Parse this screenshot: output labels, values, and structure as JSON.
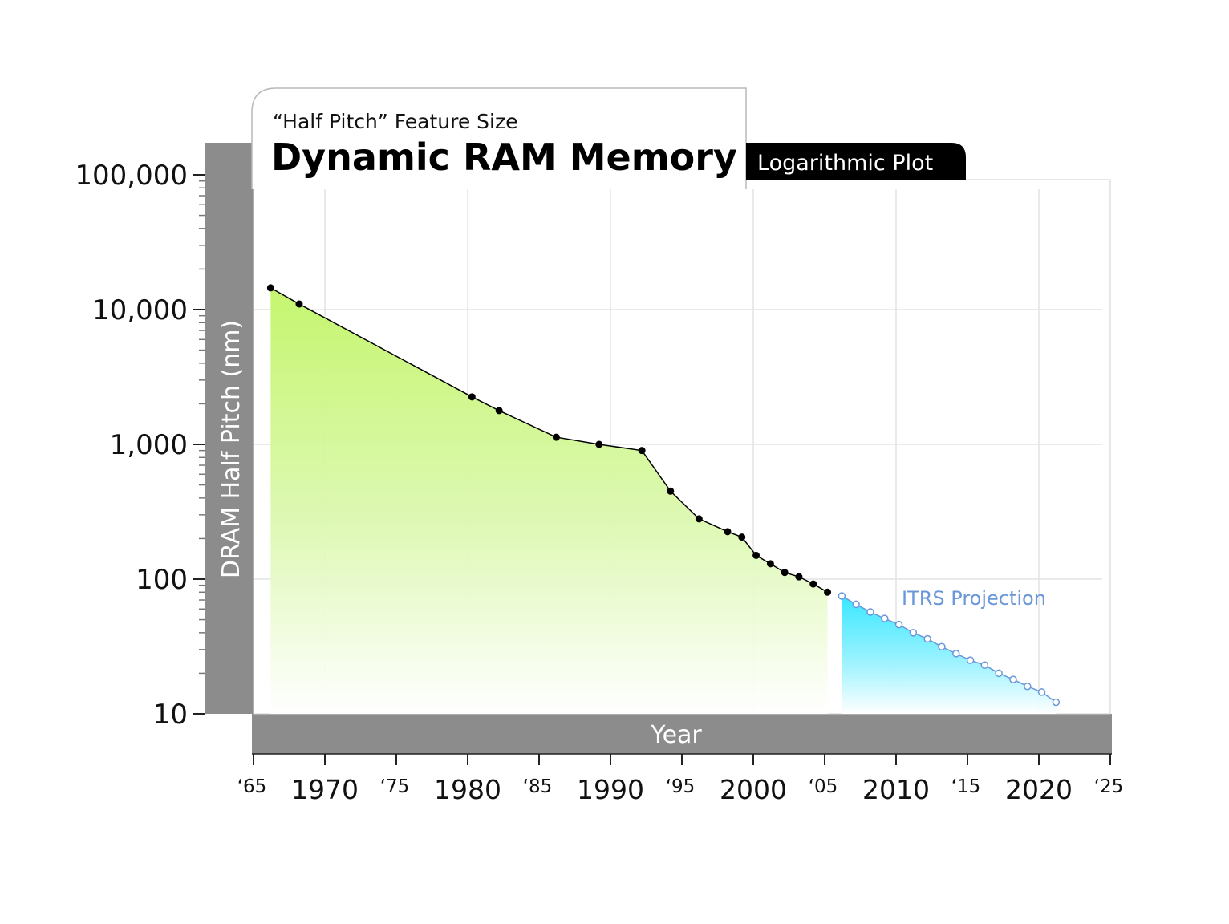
{
  "chart_data": {
    "type": "area",
    "subtitle": "“Half Pitch” Feature Size",
    "title": "Dynamic RAM Memory",
    "badge": "Logarithmic Plot",
    "xlabel": "Year",
    "ylabel": "DRAM Half Pitch (nm)",
    "y_scale": "log",
    "ylim": [
      10,
      100000
    ],
    "xlim": [
      1965,
      2025
    ],
    "grid": true,
    "y_ticks": [
      {
        "value": 100000,
        "label": "100,000"
      },
      {
        "value": 10000,
        "label": "10,000"
      },
      {
        "value": 1000,
        "label": "1,000"
      },
      {
        "value": 100,
        "label": "100"
      },
      {
        "value": 10,
        "label": "10"
      }
    ],
    "x_ticks_major": [
      {
        "value": 1970,
        "label": "1970"
      },
      {
        "value": 1980,
        "label": "1980"
      },
      {
        "value": 1990,
        "label": "1990"
      },
      {
        "value": 2000,
        "label": "2000"
      },
      {
        "value": 2010,
        "label": "2010"
      },
      {
        "value": 2020,
        "label": "2020"
      }
    ],
    "x_ticks_minor": [
      {
        "value": 1965,
        "label": "‘65"
      },
      {
        "value": 1975,
        "label": "‘75"
      },
      {
        "value": 1985,
        "label": "‘85"
      },
      {
        "value": 1995,
        "label": "‘95"
      },
      {
        "value": 2005,
        "label": "‘05"
      },
      {
        "value": 2015,
        "label": "‘15"
      },
      {
        "value": 2025,
        "label": "‘25"
      }
    ],
    "series": [
      {
        "name": "",
        "color": "#000000",
        "fill_top": "#c8f57a",
        "points": [
          [
            1966.2,
            14500
          ],
          [
            1968.2,
            11000
          ],
          [
            1980.3,
            2250
          ],
          [
            1982.2,
            1780
          ],
          [
            1986.2,
            1130
          ],
          [
            1989.2,
            1000
          ],
          [
            1992.2,
            900
          ],
          [
            1994.2,
            450
          ],
          [
            1996.2,
            280
          ],
          [
            1998.2,
            225
          ],
          [
            1999.2,
            205
          ],
          [
            2000.2,
            150
          ],
          [
            2001.2,
            130
          ],
          [
            2002.2,
            112
          ],
          [
            2003.2,
            104
          ],
          [
            2004.2,
            92
          ],
          [
            2005.2,
            80
          ]
        ]
      },
      {
        "name": "ITRS Projection",
        "color": "#6a97d8",
        "fill_top": "#3fe9ff",
        "points": [
          [
            2006.2,
            75
          ],
          [
            2007.2,
            65
          ],
          [
            2008.2,
            57
          ],
          [
            2009.2,
            51
          ],
          [
            2010.2,
            46
          ],
          [
            2011.2,
            40
          ],
          [
            2012.2,
            36
          ],
          [
            2013.2,
            31.5
          ],
          [
            2014.2,
            28
          ],
          [
            2015.2,
            25
          ],
          [
            2016.2,
            23
          ],
          [
            2017.2,
            20
          ],
          [
            2018.2,
            18
          ],
          [
            2019.2,
            16
          ],
          [
            2020.2,
            14.5
          ],
          [
            2021.2,
            12.2
          ]
        ]
      }
    ]
  }
}
